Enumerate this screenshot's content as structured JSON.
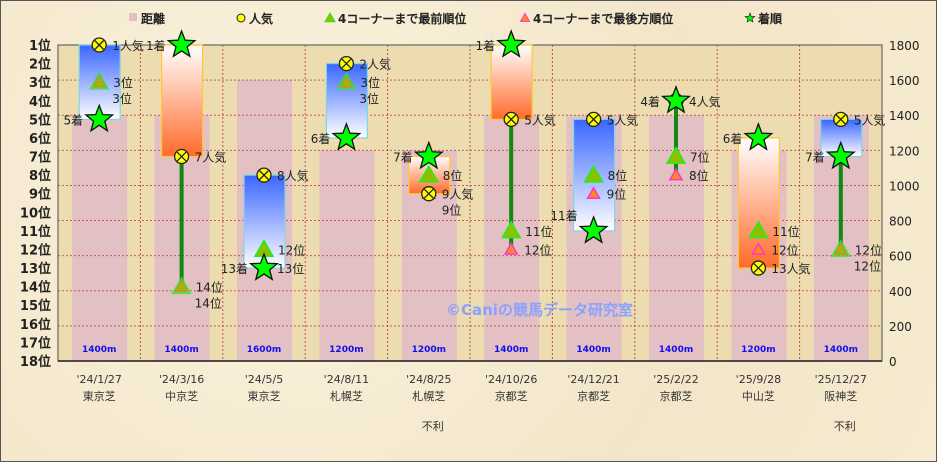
{
  "chart_data": {
    "type": "bar",
    "legend": {
      "placement": "top",
      "entries": [
        "距離",
        "人気",
        "4コーナーまで最前順位",
        "4コーナーまで最後方順位",
        "着順"
      ]
    },
    "watermark": "©Caniの競馬データ研究室",
    "left_axis": {
      "ylim": [
        18,
        1
      ],
      "ticks": [
        "1位",
        "2位",
        "3位",
        "4位",
        "5位",
        "6位",
        "7位",
        "8位",
        "9位",
        "10位",
        "11位",
        "12位",
        "13位",
        "14位",
        "15位",
        "16位",
        "17位",
        "18位"
      ],
      "inverted": true
    },
    "right_axis": {
      "ylim": [
        0,
        1800
      ],
      "ticks": [
        "0",
        "200",
        "400",
        "600",
        "800",
        "1000",
        "1200",
        "1400",
        "1600",
        "1800"
      ]
    },
    "grid": true,
    "categories": [
      {
        "date": "'24/1/27",
        "course": "東京芝",
        "note": ""
      },
      {
        "date": "'24/3/16",
        "course": "中京芝",
        "note": ""
      },
      {
        "date": "'24/5/5",
        "course": "東京芝",
        "note": ""
      },
      {
        "date": "'24/8/11",
        "course": "札幌芝",
        "note": ""
      },
      {
        "date": "'24/8/25",
        "course": "札幌芝",
        "note": "不利"
      },
      {
        "date": "'24/10/26",
        "course": "京都芝",
        "note": ""
      },
      {
        "date": "'24/12/21",
        "course": "京都芝",
        "note": ""
      },
      {
        "date": "'25/2/22",
        "course": "京都芝",
        "note": ""
      },
      {
        "date": "'25/9/28",
        "course": "中山芝",
        "note": ""
      },
      {
        "date": "'25/12/27",
        "course": "阪神芝",
        "note": "不利"
      }
    ],
    "series": [
      {
        "name": "距離",
        "axis": "right",
        "values": [
          1400,
          1400,
          1600,
          1200,
          1200,
          1400,
          1400,
          1400,
          1200,
          1400
        ],
        "labels": [
          "1400m",
          "1400m",
          "1600m",
          "1200m",
          "1200m",
          "1400m",
          "1400m",
          "1400m",
          "1200m",
          "1400m"
        ]
      },
      {
        "name": "人気",
        "axis": "left",
        "values": [
          1,
          7,
          8,
          2,
          9,
          5,
          5,
          4,
          13,
          5
        ],
        "labels": [
          "1人気",
          "7人気",
          "8人気",
          "2人気",
          "9人気",
          "5人気",
          "5人気",
          "4人気",
          "13人気",
          "5人気"
        ]
      },
      {
        "name": "4コーナーまで最前順位",
        "axis": "left",
        "values": [
          3,
          14,
          12,
          3,
          8,
          11,
          8,
          7,
          11,
          12
        ],
        "labels": [
          "3位",
          "14位",
          "12位",
          "3位",
          "8位",
          "11位",
          "8位",
          "7位",
          "11位",
          "12位"
        ]
      },
      {
        "name": "4コーナーまで最後方順位",
        "axis": "left",
        "values": [
          3,
          14,
          13,
          3,
          9,
          12,
          9,
          8,
          12,
          12
        ],
        "labels": [
          "3位",
          "14位",
          "13位",
          "3位",
          "9位",
          "12位",
          "9位",
          "8位",
          "12位",
          "12位"
        ]
      },
      {
        "name": "着順",
        "axis": "left",
        "values": [
          5,
          1,
          13,
          6,
          7,
          1,
          11,
          4,
          6,
          7
        ],
        "labels": [
          "5着",
          "1着",
          "13着",
          "6着",
          "7着",
          "1着",
          "11着",
          "4着",
          "6着",
          "7着"
        ]
      }
    ],
    "colors": {
      "distance": "#e2c0c4",
      "distance_label": "#1010ee",
      "popularity": "#ffff00",
      "best_corner": "#8fbf00",
      "worst_corner": "#ff8c1a",
      "worst_corner_edge": "#ff33cc",
      "finish": "#00ff00",
      "box_worse": "#3a66ff",
      "box_better": "#ff6a2a",
      "range_line": "#118811",
      "grid": "#b03030",
      "watermark": "#8aa2ff"
    }
  }
}
